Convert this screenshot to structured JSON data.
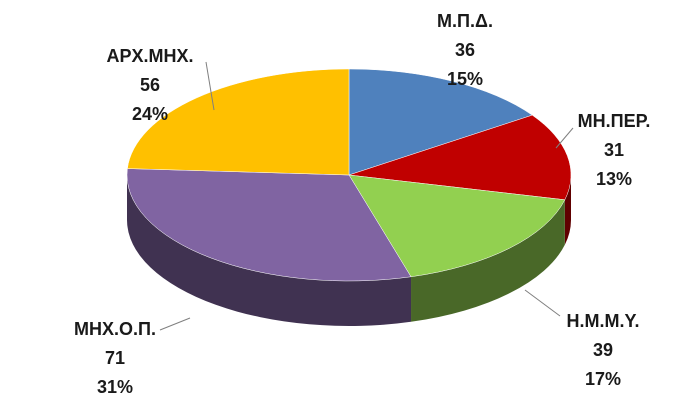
{
  "chart_data": {
    "type": "pie3d",
    "categories": [
      "Μ.Π.Δ.",
      "ΜΗ.ΠΕΡ.",
      "Η.Μ.Μ.Υ.",
      "ΜΗΧ.Ο.Π.",
      "ΑΡΧ.ΜΗΧ."
    ],
    "values": [
      36,
      31,
      39,
      71,
      56
    ],
    "percent_labels": [
      "15%",
      "13%",
      "17%",
      "31%",
      "24%"
    ],
    "colors": [
      "#4f81bd",
      "#c00000",
      "#92d050",
      "#8064a2",
      "#ffc000"
    ]
  }
}
